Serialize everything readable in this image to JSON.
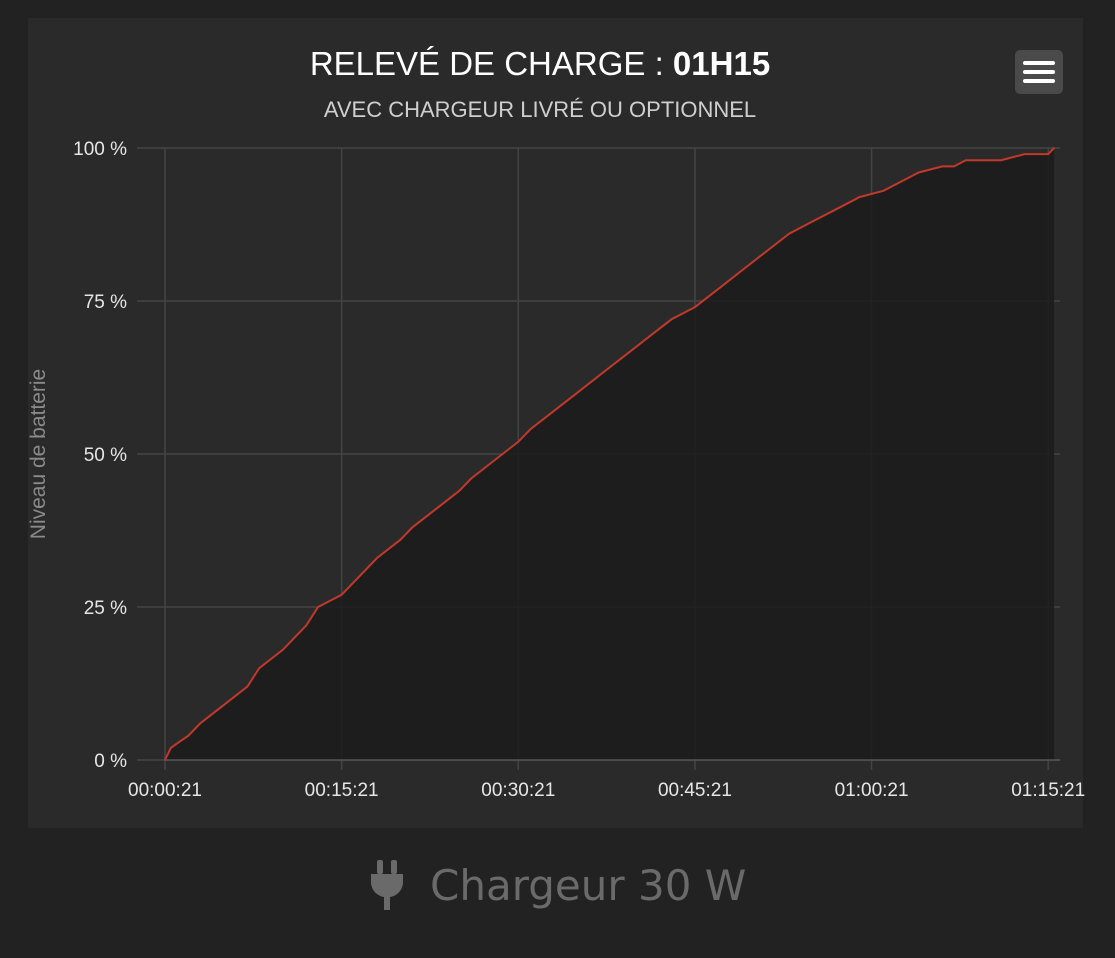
{
  "header": {
    "title_prefix": "RELEVÉ DE CHARGE : ",
    "title_time": "01H15",
    "subtitle": "AVEC CHARGEUR LIVRÉ OU OPTIONNEL"
  },
  "menu": {
    "icon": "hamburger-menu-icon"
  },
  "footer": {
    "icon": "plug-icon",
    "label": "Chargeur 30 W"
  },
  "colors": {
    "background": "#222222",
    "plot_background": "#2a2a2a",
    "line": "#c0392b",
    "area": "#1b1b1b",
    "grid": "#444444"
  },
  "chart_data": {
    "type": "area",
    "title": "RELEVÉ DE CHARGE : 01H15",
    "subtitle": "AVEC CHARGEUR LIVRÉ OU OPTIONNEL",
    "xlabel": "",
    "ylabel": "Niveau de batterie",
    "x_unit": "minutes elapsed",
    "xlim": [
      "00:00:21",
      "01:16:21"
    ],
    "ylim": [
      0,
      100
    ],
    "x_ticks": [
      "00:00:21",
      "00:15:21",
      "00:30:21",
      "00:45:21",
      "01:00:21",
      "01:15:21"
    ],
    "y_ticks": [
      "0 %",
      "25 %",
      "50 %",
      "75 %",
      "100 %"
    ],
    "grid": true,
    "legend": "none",
    "series": [
      {
        "x": [
          "00:00:21",
          "00:00:51",
          "00:02:21",
          "00:03:21",
          "00:05:21",
          "00:07:21",
          "00:08:21",
          "00:10:21",
          "00:12:21",
          "00:13:21",
          "00:15:21",
          "00:17:21",
          "00:18:21",
          "00:20:21",
          "00:21:21",
          "00:23:21",
          "00:25:21",
          "00:26:21",
          "00:28:21",
          "00:30:21",
          "00:31:21",
          "00:33:21",
          "00:35:21",
          "00:37:21",
          "00:39:21",
          "00:41:21",
          "00:43:21",
          "00:45:21",
          "00:47:21",
          "00:49:21",
          "00:51:21",
          "00:53:21",
          "00:55:21",
          "00:57:21",
          "00:59:21",
          "01:01:21",
          "01:03:21",
          "01:04:21",
          "01:06:21",
          "01:07:21",
          "01:08:21",
          "01:11:21",
          "01:13:21",
          "01:14:21",
          "01:15:21",
          "01:15:51"
        ],
        "values": [
          0,
          2,
          4,
          6,
          9,
          12,
          15,
          18,
          22,
          25,
          27,
          31,
          33,
          36,
          38,
          41,
          44,
          46,
          49,
          52,
          54,
          57,
          60,
          63,
          66,
          69,
          72,
          74,
          77,
          80,
          83,
          86,
          88,
          90,
          92,
          93,
          95,
          96,
          97,
          97,
          98,
          98,
          99,
          99,
          99,
          100
        ]
      }
    ]
  }
}
